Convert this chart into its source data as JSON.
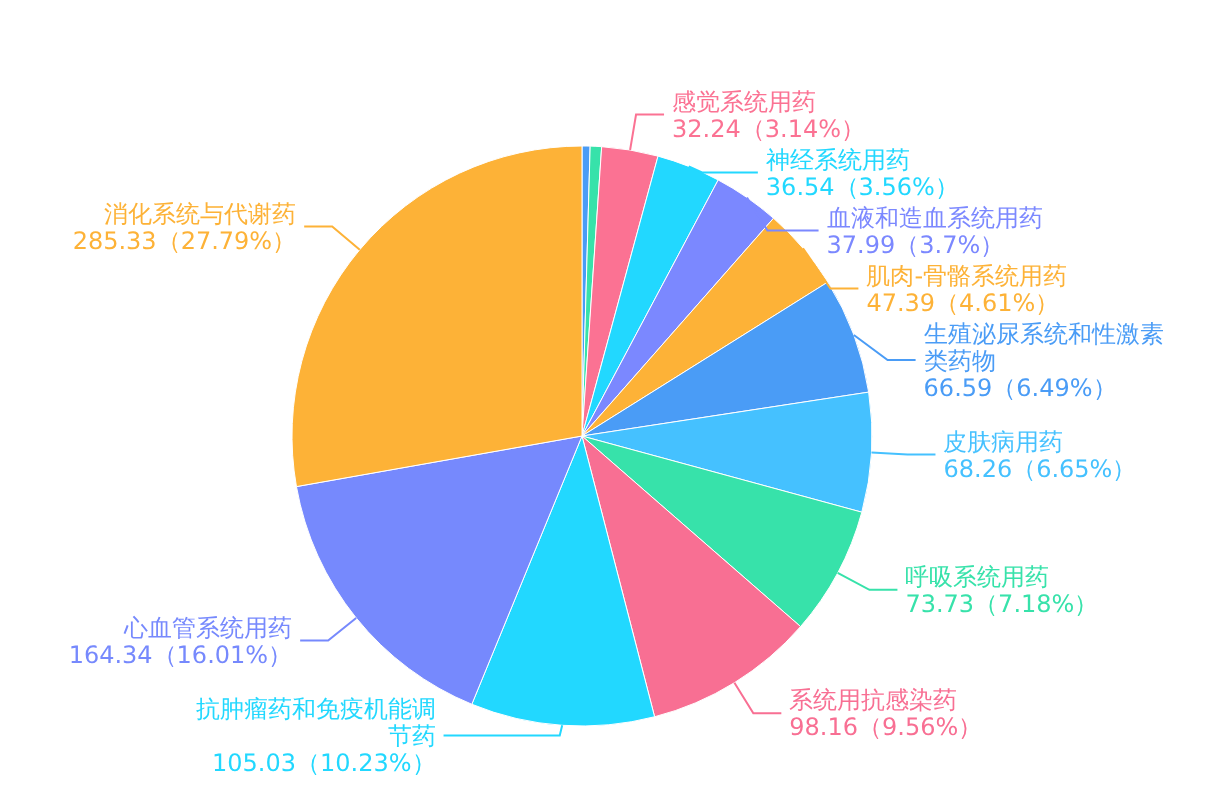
{
  "chart_data": {
    "type": "pie",
    "categories": [
      null,
      null,
      "感觉系统用药",
      "神经系统用药",
      "血液和造血系统用药",
      "肌肉-骨骼系统用药",
      "生殖泌尿系统和性激素类药物",
      "皮肤病用药",
      "呼吸系统用药",
      "系统用抗感染药",
      "抗肿瘤药和免疫机能调节药",
      "心血管系统用药",
      "消化系统与代谢药"
    ],
    "values": [
      4.6,
      6.5,
      32.24,
      36.54,
      37.99,
      47.39,
      66.59,
      68.26,
      73.73,
      98.16,
      105.03,
      164.34,
      285.33
    ],
    "value_labels": [
      null,
      null,
      "32.24（3.14%）",
      "36.54（3.56%）",
      "37.99（3.7%）",
      "47.39（4.61%）",
      "66.59（6.49%）",
      "68.26（6.65%）",
      "73.73（7.18%）",
      "98.16（9.56%）",
      "105.03（10.23%）",
      "164.34（16.01%）",
      "285.33（27.79%）"
    ],
    "colors": [
      "#4a9cf6",
      "#37e2aa",
      "#fb7293",
      "#22d8ff",
      "#7b88ff",
      "#fdb237",
      "#4a9cf6",
      "#45c1ff",
      "#37e2aa",
      "#f86f93",
      "#22d8ff",
      "#7689fd",
      "#fdb237"
    ]
  }
}
